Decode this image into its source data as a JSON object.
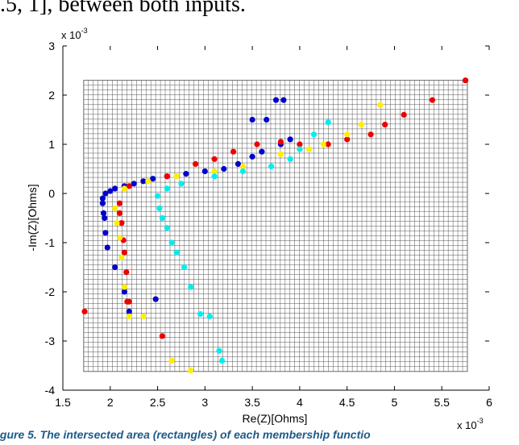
{
  "header_text": ".5, 1], between both inputs.",
  "caption": "igure 5. The intersected area (rectangles) of each membership functio",
  "chart_data": {
    "type": "scatter",
    "title": "",
    "xlabel": "Re(Z)[Ohms]",
    "ylabel": "-Im(Z)[Ohms]",
    "x_scale_label": "x 10",
    "x_scale_exp": "-3",
    "y_scale_label": "x 10",
    "y_scale_exp": "-3",
    "xlim": [
      1.5,
      6
    ],
    "ylim": [
      -4,
      3
    ],
    "xticks": [
      "1.5",
      "2",
      "2.5",
      "3",
      "3.5",
      "4",
      "4.5",
      "5",
      "5.5",
      "6"
    ],
    "yticks": [
      "3",
      "2",
      "1",
      "0",
      "-1",
      "-2",
      "-3",
      "-4"
    ],
    "grid_region": {
      "x": [
        1.72,
        5.77
      ],
      "y": [
        -3.62,
        2.3
      ]
    },
    "series": [
      {
        "color": "#0000cc",
        "points": [
          [
            1.92,
            -0.1
          ],
          [
            1.92,
            -0.2
          ],
          [
            1.93,
            -0.4
          ],
          [
            1.94,
            -0.5
          ],
          [
            1.95,
            -0.8
          ],
          [
            1.97,
            -1.1
          ],
          [
            2.05,
            -1.5
          ],
          [
            2.15,
            -2.0
          ],
          [
            2.2,
            -2.4
          ],
          [
            2.48,
            -2.15
          ],
          [
            1.95,
            0.0
          ],
          [
            2.0,
            0.05
          ],
          [
            2.05,
            0.1
          ],
          [
            2.15,
            0.15
          ],
          [
            2.25,
            0.2
          ],
          [
            2.35,
            0.25
          ],
          [
            2.45,
            0.3
          ],
          [
            2.6,
            0.35
          ],
          [
            2.8,
            0.4
          ],
          [
            3.0,
            0.45
          ],
          [
            3.2,
            0.5
          ],
          [
            3.35,
            0.6
          ],
          [
            3.5,
            0.75
          ],
          [
            3.6,
            0.85
          ],
          [
            3.8,
            1.0
          ],
          [
            3.9,
            1.1
          ],
          [
            3.5,
            1.5
          ],
          [
            3.65,
            1.5
          ],
          [
            3.75,
            1.9
          ],
          [
            3.83,
            1.9
          ]
        ]
      },
      {
        "color": "#ee0000",
        "points": [
          [
            1.73,
            -2.4
          ],
          [
            2.1,
            -0.2
          ],
          [
            2.1,
            -0.4
          ],
          [
            2.12,
            -0.6
          ],
          [
            2.14,
            -0.95
          ],
          [
            2.15,
            -1.2
          ],
          [
            2.17,
            -1.6
          ],
          [
            2.18,
            -2.2
          ],
          [
            2.2,
            -2.2
          ],
          [
            2.55,
            -2.9
          ],
          [
            2.2,
            0.15
          ],
          [
            2.6,
            0.35
          ],
          [
            2.9,
            0.6
          ],
          [
            3.1,
            0.7
          ],
          [
            3.3,
            0.85
          ],
          [
            3.55,
            1.0
          ],
          [
            3.8,
            1.05
          ],
          [
            4.0,
            1.0
          ],
          [
            4.3,
            1.0
          ],
          [
            4.5,
            1.1
          ],
          [
            4.75,
            1.2
          ],
          [
            4.9,
            1.4
          ],
          [
            5.1,
            1.6
          ],
          [
            5.4,
            1.9
          ],
          [
            5.75,
            2.3
          ]
        ]
      },
      {
        "color": "#ffee00",
        "points": [
          [
            2.05,
            -0.3
          ],
          [
            2.07,
            -0.6
          ],
          [
            2.1,
            -0.9
          ],
          [
            2.12,
            -1.3
          ],
          [
            2.15,
            -1.9
          ],
          [
            2.2,
            -2.5
          ],
          [
            2.35,
            -2.5
          ],
          [
            2.65,
            -3.4
          ],
          [
            2.85,
            -3.6
          ],
          [
            2.15,
            0.1
          ],
          [
            2.4,
            0.25
          ],
          [
            2.7,
            0.35
          ],
          [
            3.1,
            0.45
          ],
          [
            3.4,
            0.55
          ],
          [
            3.8,
            0.8
          ],
          [
            4.1,
            0.9
          ],
          [
            4.25,
            1.0
          ],
          [
            4.5,
            1.2
          ],
          [
            4.65,
            1.4
          ],
          [
            4.85,
            1.8
          ]
        ]
      },
      {
        "color": "#00eeee",
        "points": [
          [
            2.5,
            -0.05
          ],
          [
            2.52,
            -0.3
          ],
          [
            2.55,
            -0.5
          ],
          [
            2.6,
            -0.7
          ],
          [
            2.65,
            -1.0
          ],
          [
            2.7,
            -1.2
          ],
          [
            2.78,
            -1.5
          ],
          [
            2.85,
            -1.9
          ],
          [
            2.95,
            -2.45
          ],
          [
            3.05,
            -2.5
          ],
          [
            3.15,
            -3.2
          ],
          [
            3.18,
            -3.4
          ],
          [
            2.6,
            0.1
          ],
          [
            2.75,
            0.2
          ],
          [
            3.1,
            0.35
          ],
          [
            3.4,
            0.45
          ],
          [
            3.7,
            0.55
          ],
          [
            3.9,
            0.7
          ],
          [
            4.0,
            0.9
          ],
          [
            4.15,
            1.2
          ],
          [
            4.3,
            1.45
          ]
        ]
      }
    ]
  }
}
